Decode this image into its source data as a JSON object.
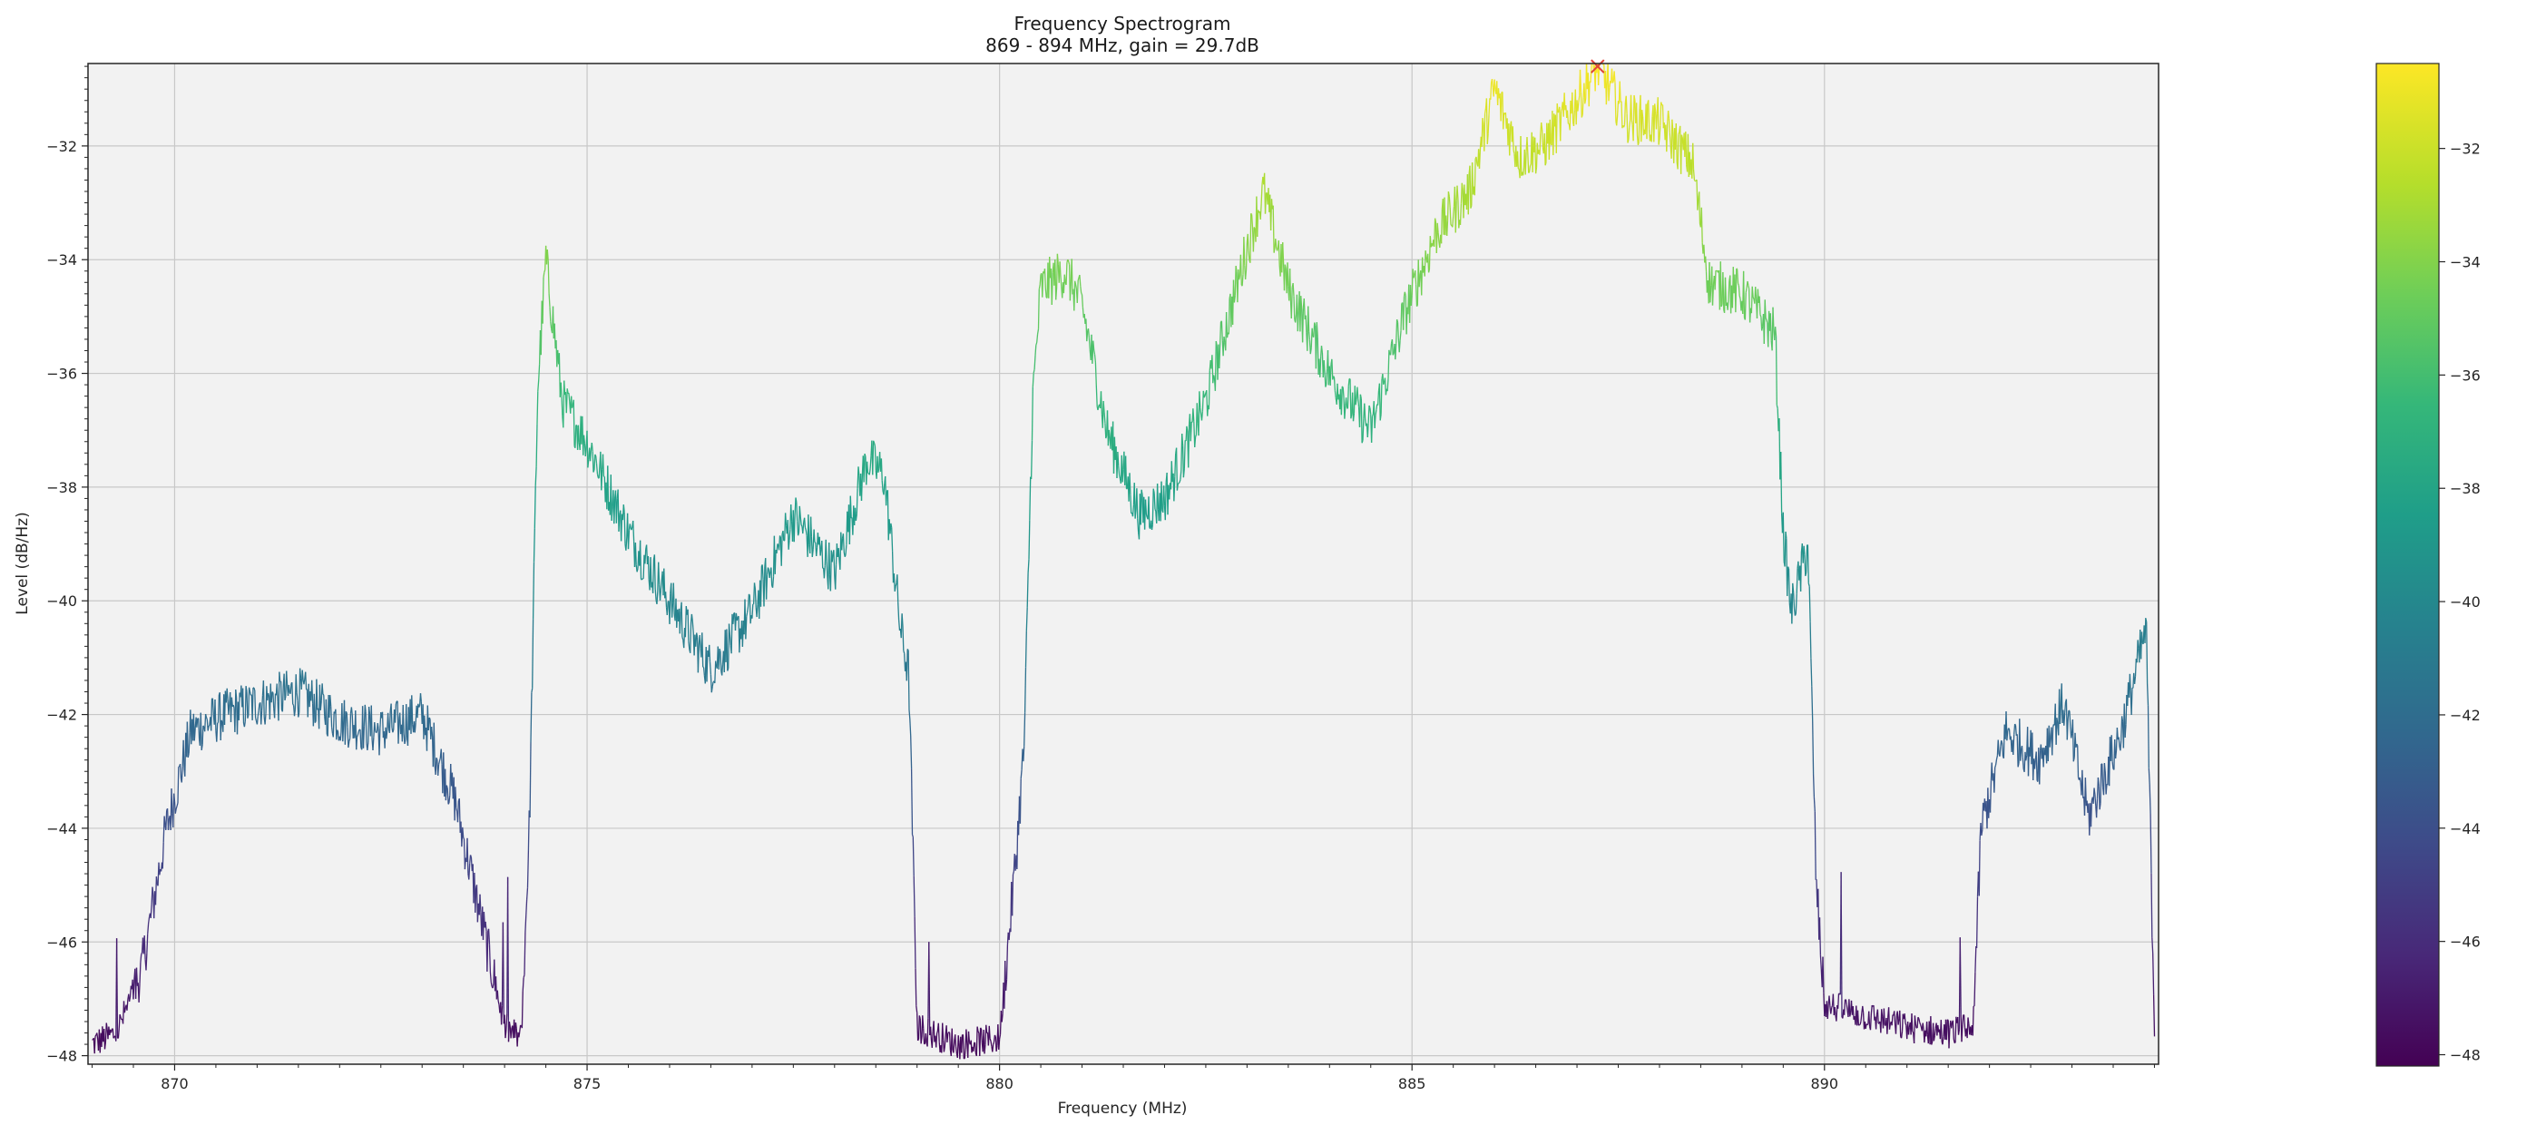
{
  "chart_data": {
    "type": "line",
    "title": "Frequency Spectrogram",
    "subtitle": "869 - 894 MHz, gain = 29.7dB",
    "xlabel": "Frequency (MHz)",
    "ylabel": "Level (dB/Hz)",
    "xlim": [
      868.95,
      894.05
    ],
    "ylim": [
      -48.15,
      -30.55
    ],
    "x_ticks": [
      870,
      875,
      880,
      885,
      890
    ],
    "y_ticks": [
      -48,
      -46,
      -44,
      -42,
      -40,
      -38,
      -36,
      -34,
      -32
    ],
    "grid": true,
    "plot_background": "#f2f2f2",
    "grid_color": "#c8c8c8",
    "colormap": "viridis",
    "colorbar": {
      "range": [
        -48.2,
        -30.5
      ],
      "ticks": [
        -48,
        -46,
        -44,
        -42,
        -40,
        -38,
        -36,
        -34,
        -32
      ]
    },
    "peak_marker": {
      "x": 887.25,
      "y": -30.6,
      "color": "#e0443a"
    },
    "series": [
      {
        "x": [
          869.0,
          869.3,
          869.6,
          869.9,
          870.2,
          870.6,
          871.0,
          871.5,
          872.0,
          872.5,
          873.0,
          873.4,
          873.7,
          874.0,
          874.2,
          874.3,
          874.4,
          874.5,
          874.7,
          875.0,
          875.5,
          876.0,
          876.5,
          877.0,
          877.5,
          878.0,
          878.4,
          878.6,
          878.8,
          878.9,
          879.0,
          879.5,
          880.0,
          880.2,
          880.3,
          880.4,
          880.5,
          880.8,
          881.0,
          881.3,
          881.7,
          882.0,
          882.5,
          883.0,
          883.2,
          883.5,
          884.0,
          884.5,
          884.9,
          885.3,
          885.7,
          886.0,
          886.3,
          886.6,
          887.0,
          887.25,
          887.6,
          888.0,
          888.4,
          888.6,
          889.0,
          889.4,
          889.5,
          889.6,
          889.8,
          889.9,
          890.0,
          890.5,
          891.0,
          891.5,
          891.8,
          891.9,
          892.2,
          892.6,
          892.9,
          893.2,
          893.6,
          893.9,
          894.0
        ],
        "y": [
          -47.8,
          -47.6,
          -46.5,
          -44.0,
          -42.3,
          -42.0,
          -41.8,
          -41.6,
          -42.1,
          -42.3,
          -42.0,
          -43.5,
          -45.5,
          -47.5,
          -47.7,
          -44.0,
          -36.3,
          -34.0,
          -36.5,
          -37.2,
          -38.8,
          -40.0,
          -41.2,
          -40.2,
          -38.5,
          -39.5,
          -37.5,
          -37.8,
          -40.5,
          -41.3,
          -47.5,
          -47.8,
          -47.7,
          -44.5,
          -42.5,
          -36.5,
          -34.5,
          -34.2,
          -34.8,
          -37.0,
          -38.5,
          -38.2,
          -36.5,
          -33.8,
          -32.8,
          -34.5,
          -36.0,
          -37.0,
          -35.0,
          -33.5,
          -32.8,
          -31.0,
          -32.2,
          -32.0,
          -31.2,
          -30.6,
          -31.5,
          -31.6,
          -32.3,
          -34.4,
          -34.6,
          -35.3,
          -38.8,
          -40.2,
          -39.0,
          -45.0,
          -47.1,
          -47.3,
          -47.5,
          -47.6,
          -47.5,
          -44.0,
          -42.3,
          -42.8,
          -41.8,
          -43.8,
          -42.3,
          -40.5,
          -47.5
        ]
      }
    ]
  }
}
